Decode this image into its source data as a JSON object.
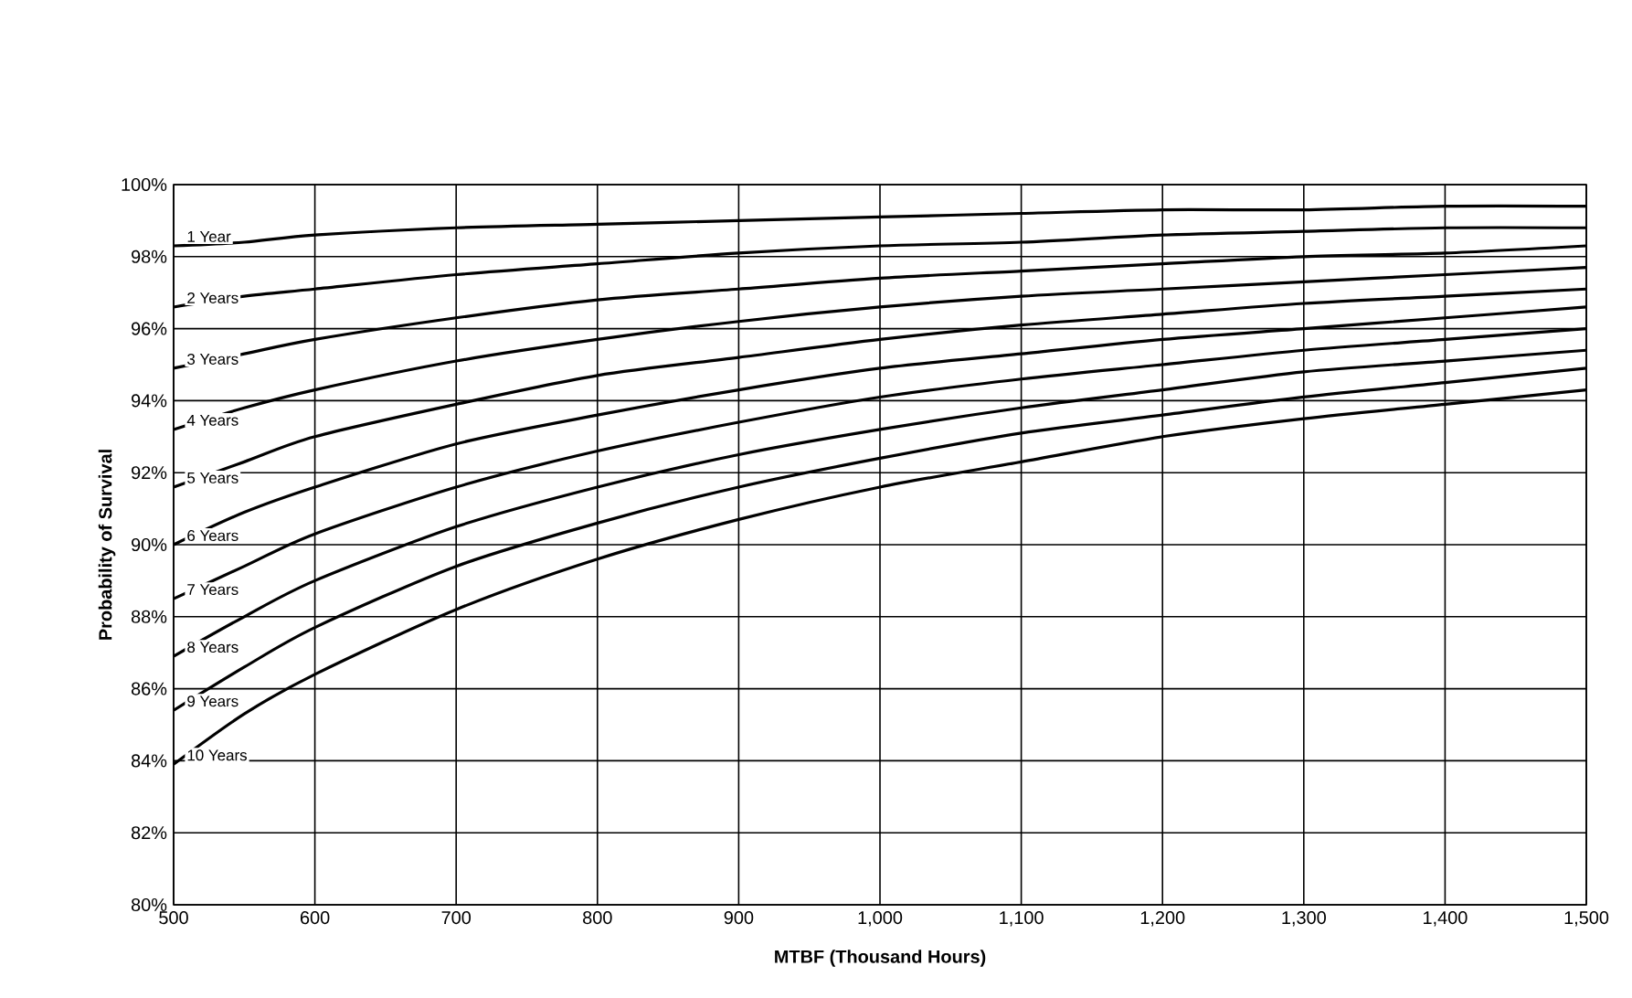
{
  "chart_data": {
    "type": "line",
    "xlabel": "MTBF (Thousand Hours)",
    "ylabel": "Probability of Survival",
    "x": [
      500,
      550,
      600,
      700,
      800,
      900,
      1000,
      1100,
      1200,
      1300,
      1400,
      1500
    ],
    "series": [
      {
        "name": "1 Year",
        "color": "#000000",
        "values": [
          98.3,
          98.4,
          98.6,
          98.8,
          98.9,
          99.0,
          99.1,
          99.2,
          99.3,
          99.3,
          99.4,
          99.4
        ]
      },
      {
        "name": "2 Years",
        "color": "#000000",
        "values": [
          96.6,
          96.9,
          97.1,
          97.5,
          97.8,
          98.1,
          98.3,
          98.4,
          98.6,
          98.7,
          98.8,
          98.8
        ]
      },
      {
        "name": "3 Years",
        "color": "#000000",
        "values": [
          94.9,
          95.3,
          95.7,
          96.3,
          96.8,
          97.1,
          97.4,
          97.6,
          97.8,
          98.0,
          98.1,
          98.3
        ]
      },
      {
        "name": "4 Years",
        "color": "#000000",
        "values": [
          93.2,
          93.8,
          94.3,
          95.1,
          95.7,
          96.2,
          96.6,
          96.9,
          97.1,
          97.3,
          97.5,
          97.7
        ]
      },
      {
        "name": "5 Years",
        "color": "#000000",
        "values": [
          91.6,
          92.3,
          93.0,
          93.9,
          94.7,
          95.2,
          95.7,
          96.1,
          96.4,
          96.7,
          96.9,
          97.1
        ]
      },
      {
        "name": "6 Years",
        "color": "#000000",
        "values": [
          90.0,
          90.9,
          91.6,
          92.8,
          93.6,
          94.3,
          94.9,
          95.3,
          95.7,
          96.0,
          96.3,
          96.6
        ]
      },
      {
        "name": "7 Years",
        "color": "#000000",
        "values": [
          88.5,
          89.4,
          90.3,
          91.6,
          92.6,
          93.4,
          94.1,
          94.6,
          95.0,
          95.4,
          95.7,
          96.0
        ]
      },
      {
        "name": "8 Years",
        "color": "#000000",
        "values": [
          86.9,
          88.0,
          89.0,
          90.5,
          91.6,
          92.5,
          93.2,
          93.8,
          94.3,
          94.8,
          95.1,
          95.4
        ]
      },
      {
        "name": "9 Years",
        "color": "#000000",
        "values": [
          85.4,
          86.6,
          87.7,
          89.4,
          90.6,
          91.6,
          92.4,
          93.1,
          93.6,
          94.1,
          94.5,
          94.9
        ]
      },
      {
        "name": "10 Years",
        "color": "#000000",
        "values": [
          83.9,
          85.3,
          86.4,
          88.2,
          89.6,
          90.7,
          91.6,
          92.3,
          93.0,
          93.5,
          93.9,
          94.3
        ]
      }
    ],
    "xlim": [
      500,
      1500
    ],
    "ylim": [
      80,
      100
    ],
    "xticks": [
      500,
      600,
      700,
      800,
      900,
      {
        "value": 1000,
        "label": "1,000"
      },
      {
        "value": 1100,
        "label": "1,100"
      },
      {
        "value": 1200,
        "label": "1,200"
      },
      {
        "value": 1300,
        "label": "1,300"
      },
      {
        "value": 1400,
        "label": "1,400"
      },
      {
        "value": 1500,
        "label": "1,500"
      }
    ],
    "yticks": [
      {
        "value": 80,
        "label": "80%"
      },
      {
        "value": 82,
        "label": "82%"
      },
      {
        "value": 84,
        "label": "84%"
      },
      {
        "value": 86,
        "label": "86%"
      },
      {
        "value": 88,
        "label": "88%"
      },
      {
        "value": 90,
        "label": "90%"
      },
      {
        "value": 92,
        "label": "92%"
      },
      {
        "value": 94,
        "label": "94%"
      },
      {
        "value": 96,
        "label": "96%"
      },
      {
        "value": 98,
        "label": "98%"
      },
      {
        "value": 100,
        "label": "100%"
      }
    ],
    "grid": true,
    "legend": false,
    "marker": "none",
    "line_style": "solid"
  }
}
